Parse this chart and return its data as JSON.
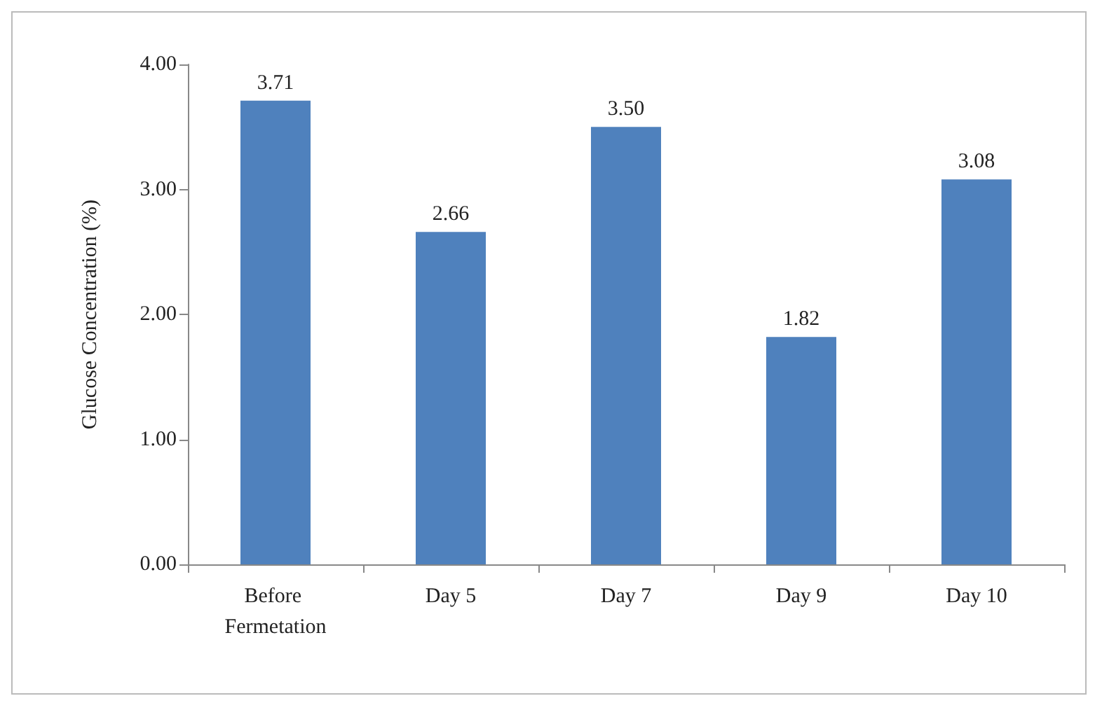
{
  "chart_data": {
    "type": "bar",
    "ylabel": "Glucose Concentration (%)",
    "categories": [
      "Before Fermetation",
      "Day 5",
      "Day 7",
      "Day 9",
      "Day 10"
    ],
    "values": [
      3.71,
      2.66,
      3.5,
      1.82,
      3.08
    ],
    "value_labels": [
      "3.71",
      "2.66",
      "3.50",
      "1.82",
      "3.08"
    ],
    "color": "#4f81bd",
    "ylim": [
      0,
      4
    ],
    "yticks": [
      {
        "value": 0,
        "label": "0.00"
      },
      {
        "value": 1,
        "label": "1.00"
      },
      {
        "value": 2,
        "label": "2.00"
      },
      {
        "value": 3,
        "label": "3.00"
      },
      {
        "value": 4,
        "label": "4.00"
      }
    ],
    "grid": false
  }
}
